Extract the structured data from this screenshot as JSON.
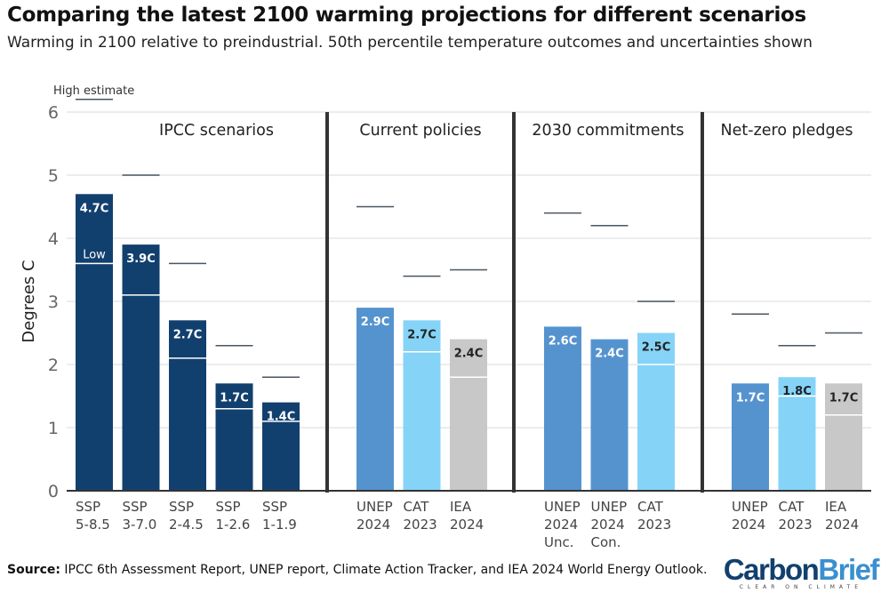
{
  "title": "Comparing the latest 2100 warming projections for different scenarios",
  "subtitle": "Warming in 2100 relative to preindustrial. 50th percentile temperature outcomes and uncertainties shown",
  "source_label": "Source:",
  "source_text": " IPCC 6th Assessment Report, UNEP report, Climate Action Tracker, and IEA 2024 World Energy Outlook.",
  "logo": {
    "part1": "Carbon",
    "part2": "Brief",
    "tagline": "CLEAR ON CLIMATE"
  },
  "chart_data": {
    "type": "bar",
    "ylabel": "Degrees C",
    "ylim": [
      0,
      6
    ],
    "yticks": [
      0,
      1,
      2,
      3,
      4,
      5,
      6
    ],
    "grid": true,
    "legend": {
      "high": "High estimate",
      "low": "Low"
    },
    "colors": {
      "ipcc": "#12406e",
      "unep": "#5593cf",
      "cat": "#85d4f8",
      "iea": "#c8c8c8"
    },
    "panels": [
      {
        "title": "IPCC scenarios",
        "bars": [
          {
            "label": [
              "SSP",
              "5-8.5"
            ],
            "median": 4.7,
            "low": 3.6,
            "high": 6.2,
            "text": "4.7C",
            "color": "ipcc"
          },
          {
            "label": [
              "SSP",
              "3-7.0"
            ],
            "median": 3.9,
            "low": 3.1,
            "high": 5.0,
            "text": "3.9C",
            "color": "ipcc"
          },
          {
            "label": [
              "SSP",
              "2-4.5"
            ],
            "median": 2.7,
            "low": 2.1,
            "high": 3.6,
            "text": "2.7C",
            "color": "ipcc"
          },
          {
            "label": [
              "SSP",
              "1-2.6"
            ],
            "median": 1.7,
            "low": 1.3,
            "high": 2.3,
            "text": "1.7C",
            "color": "ipcc"
          },
          {
            "label": [
              "SSP",
              "1-1.9"
            ],
            "median": 1.4,
            "low": 1.1,
            "high": 1.8,
            "text": "1.4C",
            "color": "ipcc"
          }
        ]
      },
      {
        "title": "Current policies",
        "bars": [
          {
            "label": [
              "UNEP",
              "2024"
            ],
            "median": 2.9,
            "low": null,
            "high": 4.5,
            "text": "2.9C",
            "color": "unep"
          },
          {
            "label": [
              "CAT",
              "2023"
            ],
            "median": 2.7,
            "low": 2.2,
            "high": 3.4,
            "text": "2.7C",
            "color": "cat"
          },
          {
            "label": [
              "IEA",
              "2024"
            ],
            "median": 2.4,
            "low": 1.8,
            "high": 3.5,
            "text": "2.4C",
            "color": "iea"
          }
        ]
      },
      {
        "title": "2030 commitments",
        "bars": [
          {
            "label": [
              "UNEP",
              "2024",
              "Unc."
            ],
            "median": 2.6,
            "low": null,
            "high": 4.4,
            "text": "2.6C",
            "color": "unep"
          },
          {
            "label": [
              "UNEP",
              "2024",
              "Con."
            ],
            "median": 2.4,
            "low": null,
            "high": 4.2,
            "text": "2.4C",
            "color": "unep"
          },
          {
            "label": [
              "CAT",
              "2023"
            ],
            "median": 2.5,
            "low": 2.0,
            "high": 3.0,
            "text": "2.5C",
            "color": "cat"
          }
        ]
      },
      {
        "title": "Net-zero pledges",
        "bars": [
          {
            "label": [
              "UNEP",
              "2024"
            ],
            "median": 1.7,
            "low": null,
            "high": 2.8,
            "text": "1.7C",
            "color": "unep"
          },
          {
            "label": [
              "CAT",
              "2023"
            ],
            "median": 1.8,
            "low": 1.5,
            "high": 2.3,
            "text": "1.8C",
            "color": "cat"
          },
          {
            "label": [
              "IEA",
              "2024"
            ],
            "median": 1.7,
            "low": 1.2,
            "high": 2.5,
            "text": "1.7C",
            "color": "iea"
          }
        ]
      }
    ]
  }
}
